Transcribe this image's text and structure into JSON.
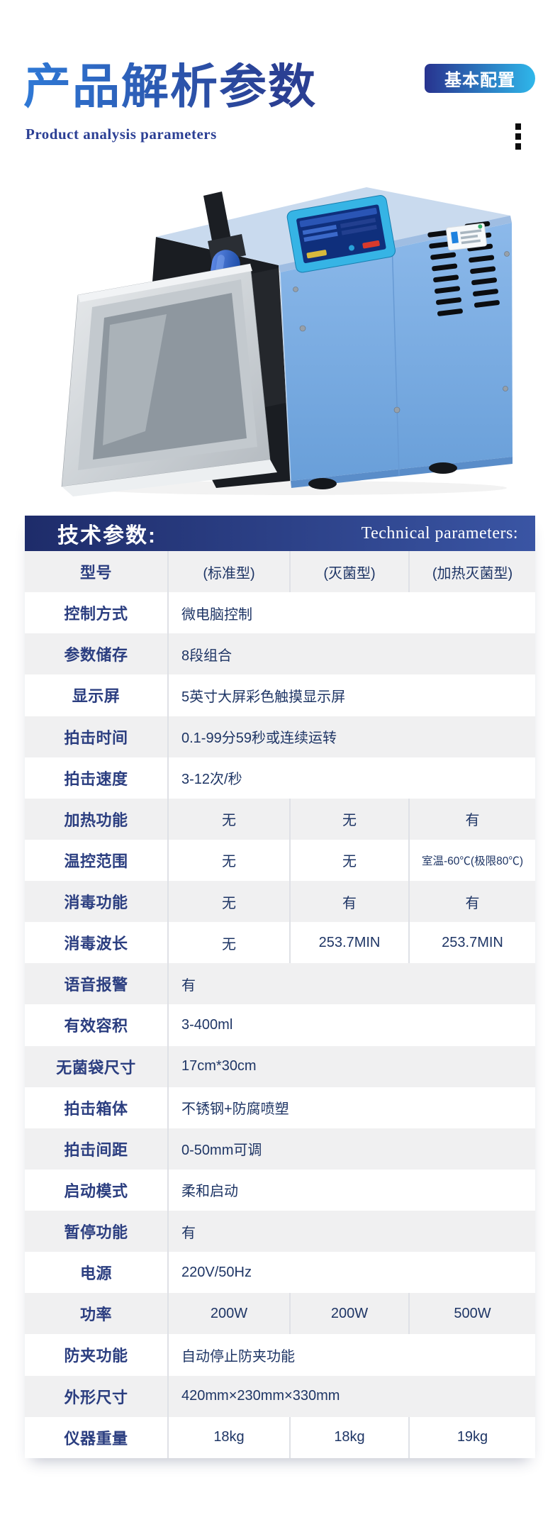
{
  "header": {
    "title_cn": "产品解析参数",
    "subtitle_en": "Product analysis parameters",
    "badge_label": "基本配置"
  },
  "table": {
    "title_cn": "技术参数:",
    "title_en": "Technical parameters:",
    "rows": [
      {
        "label": "型号",
        "values": [
          "(标准型)",
          "(灭菌型)",
          "(加热灭菌型)"
        ]
      },
      {
        "label": "控制方式",
        "values": [
          "微电脑控制"
        ]
      },
      {
        "label": "参数储存",
        "values": [
          "8段组合"
        ]
      },
      {
        "label": "显示屏",
        "values": [
          "5英寸大屏彩色触摸显示屏"
        ]
      },
      {
        "label": "拍击时间",
        "values": [
          "0.1-99分59秒或连续运转"
        ]
      },
      {
        "label": "拍击速度",
        "values": [
          "3-12次/秒"
        ]
      },
      {
        "label": "加热功能",
        "values": [
          "无",
          "无",
          "有"
        ]
      },
      {
        "label": "温控范围",
        "values": [
          "无",
          "无",
          "室温-60℃(极限80℃)"
        ]
      },
      {
        "label": "消毒功能",
        "values": [
          "无",
          "有",
          "有"
        ]
      },
      {
        "label": "消毒波长",
        "values": [
          "无",
          "253.7MIN",
          "253.7MIN"
        ]
      },
      {
        "label": "语音报警",
        "values": [
          "有"
        ]
      },
      {
        "label": "有效容积",
        "values": [
          "3-400ml"
        ]
      },
      {
        "label": "无菌袋尺寸",
        "values": [
          "17cm*30cm"
        ]
      },
      {
        "label": "拍击箱体",
        "values": [
          "不锈钢+防腐喷塑"
        ]
      },
      {
        "label": "拍击间距",
        "values": [
          "0-50mm可调"
        ]
      },
      {
        "label": "启动模式",
        "values": [
          "柔和启动"
        ]
      },
      {
        "label": "暂停功能",
        "values": [
          "有"
        ]
      },
      {
        "label": "电源",
        "values": [
          "220V/50Hz"
        ]
      },
      {
        "label": "功率",
        "values": [
          "200W",
          "200W",
          "500W"
        ]
      },
      {
        "label": "防夹功能",
        "values": [
          "自动停止防夹功能"
        ]
      },
      {
        "label": "外形尺寸",
        "values": [
          "420mm×230mm×330mm"
        ]
      },
      {
        "label": "仪器重量",
        "values": [
          "18kg",
          "18kg",
          "19kg"
        ]
      }
    ]
  },
  "colors": {
    "title_gradient_start": "#2f79d6",
    "title_gradient_end": "#2a3f93",
    "badge_gradient_start": "#28338f",
    "badge_gradient_end": "#2fb7ea",
    "table_header_start": "#1e2c6a",
    "table_header_end": "#3a55a4",
    "row_alt_bg": "#f0f0f1",
    "label_color": "#2b3e80",
    "value_color": "#1e3565",
    "machine_body_blue": "#7fb1e5",
    "panel_cyan": "#36b4e5"
  }
}
